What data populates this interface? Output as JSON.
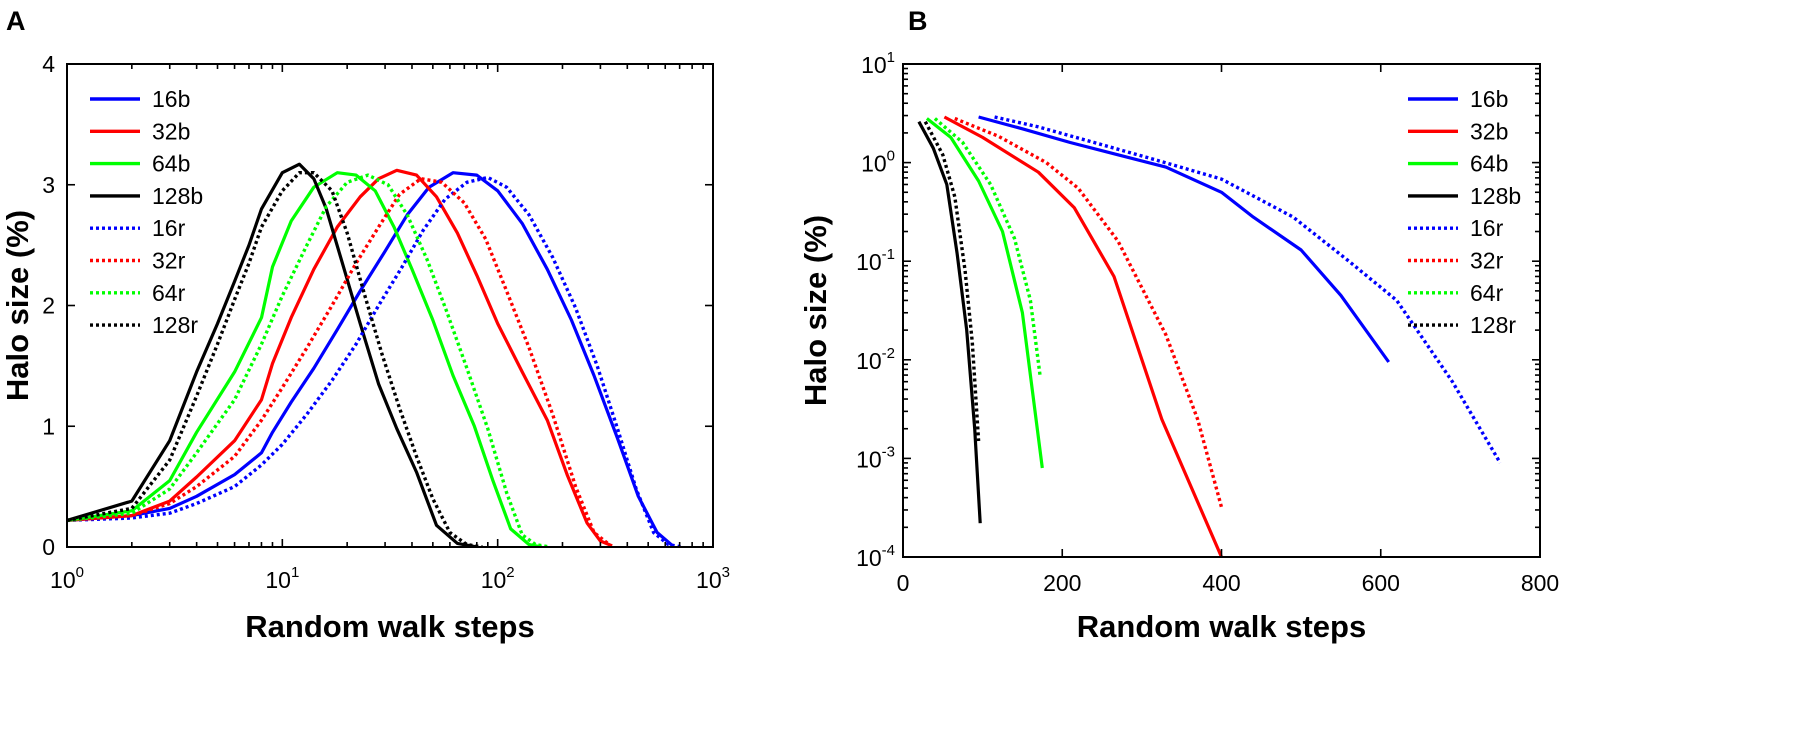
{
  "chart_data": [
    {
      "panel": "A",
      "type": "line",
      "xscale": "log",
      "yscale": "linear",
      "xlabel": "Random walk steps",
      "ylabel": "Halo size (%)",
      "xlim": [
        1,
        1000
      ],
      "ylim": [
        0,
        4
      ],
      "xticks": [
        {
          "value": 1,
          "base": "10",
          "exp": "0"
        },
        {
          "value": 10,
          "base": "10",
          "exp": "1"
        },
        {
          "value": 100,
          "base": "10",
          "exp": "2"
        },
        {
          "value": 1000,
          "base": "10",
          "exp": "3"
        }
      ],
      "yticks": [
        {
          "value": 0,
          "label": "0"
        },
        {
          "value": 1,
          "label": "1"
        },
        {
          "value": 2,
          "label": "2"
        },
        {
          "value": 3,
          "label": "3"
        },
        {
          "value": 4,
          "label": "4"
        }
      ],
      "legend_position": "top-left",
      "series": [
        {
          "name": "16b",
          "color": "#0000ff",
          "dash": false,
          "x": [
            1,
            2,
            3,
            4,
            6,
            8,
            9,
            11,
            14,
            18,
            23,
            30,
            38,
            48,
            62,
            80,
            100,
            130,
            170,
            220,
            280,
            360,
            450,
            550,
            650
          ],
          "y": [
            0.22,
            0.26,
            0.32,
            0.42,
            0.6,
            0.78,
            0.95,
            1.2,
            1.48,
            1.8,
            2.12,
            2.45,
            2.75,
            2.98,
            3.1,
            3.08,
            2.95,
            2.68,
            2.3,
            1.88,
            1.42,
            0.9,
            0.42,
            0.12,
            0.01
          ]
        },
        {
          "name": "32b",
          "color": "#ff0000",
          "dash": false,
          "x": [
            1,
            2,
            3,
            4,
            6,
            8,
            9,
            11,
            14,
            18,
            23,
            28,
            34,
            42,
            52,
            65,
            80,
            100,
            130,
            170,
            210,
            260,
            300,
            340
          ],
          "y": [
            0.22,
            0.26,
            0.38,
            0.58,
            0.88,
            1.22,
            1.52,
            1.9,
            2.3,
            2.65,
            2.9,
            3.05,
            3.12,
            3.08,
            2.9,
            2.6,
            2.25,
            1.85,
            1.45,
            1.05,
            0.6,
            0.2,
            0.05,
            0.01
          ]
        },
        {
          "name": "64b",
          "color": "#00ff00",
          "dash": false,
          "x": [
            1,
            2,
            3,
            4,
            6,
            8,
            9,
            11,
            14,
            18,
            22,
            27,
            33,
            40,
            50,
            62,
            78,
            95,
            115,
            140,
            160
          ],
          "y": [
            0.22,
            0.3,
            0.55,
            0.95,
            1.45,
            1.9,
            2.32,
            2.7,
            2.98,
            3.1,
            3.08,
            2.95,
            2.65,
            2.3,
            1.88,
            1.42,
            1.0,
            0.55,
            0.15,
            0.02,
            0.0
          ]
        },
        {
          "name": "128b",
          "color": "#000000",
          "dash": false,
          "x": [
            1,
            2,
            3,
            4,
            5,
            6,
            7,
            8,
            10,
            12,
            14,
            16,
            19,
            23,
            28,
            34,
            42,
            52,
            65,
            80
          ],
          "y": [
            0.22,
            0.38,
            0.88,
            1.45,
            1.85,
            2.2,
            2.5,
            2.8,
            3.1,
            3.17,
            3.05,
            2.8,
            2.35,
            1.85,
            1.35,
            0.98,
            0.62,
            0.18,
            0.03,
            0.0
          ]
        },
        {
          "name": "16r",
          "color": "#0000ff",
          "dash": true,
          "x": [
            1,
            2,
            3,
            4,
            6,
            8,
            10,
            13,
            17,
            22,
            28,
            36,
            45,
            57,
            72,
            90,
            110,
            140,
            180,
            230,
            290,
            360,
            440,
            530,
            620,
            720
          ],
          "y": [
            0.22,
            0.24,
            0.28,
            0.36,
            0.5,
            0.68,
            0.85,
            1.1,
            1.38,
            1.68,
            2.0,
            2.32,
            2.62,
            2.88,
            3.02,
            3.06,
            2.98,
            2.75,
            2.4,
            1.98,
            1.5,
            0.98,
            0.48,
            0.12,
            0.02,
            0.0
          ]
        },
        {
          "name": "32r",
          "color": "#ff0000",
          "dash": true,
          "x": [
            1,
            2,
            3,
            4,
            6,
            8,
            10,
            13,
            17,
            22,
            28,
            35,
            44,
            55,
            70,
            88,
            110,
            140,
            180,
            230,
            280,
            330
          ],
          "y": [
            0.22,
            0.26,
            0.36,
            0.5,
            0.75,
            1.05,
            1.32,
            1.65,
            2.0,
            2.35,
            2.65,
            2.92,
            3.05,
            3.02,
            2.85,
            2.55,
            2.12,
            1.65,
            1.1,
            0.5,
            0.12,
            0.02
          ]
        },
        {
          "name": "64r",
          "color": "#00ff00",
          "dash": true,
          "x": [
            1,
            2,
            3,
            4,
            6,
            8,
            10,
            13,
            16,
            20,
            25,
            31,
            38,
            47,
            58,
            72,
            90,
            110,
            130,
            150,
            175
          ],
          "y": [
            0.22,
            0.28,
            0.48,
            0.78,
            1.22,
            1.68,
            2.08,
            2.5,
            2.82,
            3.02,
            3.08,
            3.0,
            2.75,
            2.38,
            1.95,
            1.48,
            0.98,
            0.45,
            0.1,
            0.02,
            0.0
          ]
        },
        {
          "name": "128r",
          "color": "#000000",
          "dash": true,
          "x": [
            1,
            2,
            3,
            4,
            5,
            6,
            7,
            8,
            10,
            12,
            14,
            17,
            20,
            24,
            29,
            35,
            42,
            50,
            60,
            72,
            85
          ],
          "y": [
            0.22,
            0.32,
            0.72,
            1.25,
            1.68,
            2.05,
            2.35,
            2.65,
            2.95,
            3.1,
            3.1,
            2.95,
            2.6,
            2.1,
            1.6,
            1.15,
            0.75,
            0.4,
            0.12,
            0.02,
            0.0
          ]
        }
      ]
    },
    {
      "panel": "B",
      "type": "line",
      "xscale": "linear",
      "yscale": "log",
      "xlabel": "Random walk steps",
      "ylabel": "Halo size (%)",
      "xlim": [
        0,
        800
      ],
      "ylim": [
        0.0001,
        10
      ],
      "xticks": [
        {
          "value": 0,
          "label": "0"
        },
        {
          "value": 200,
          "label": "200"
        },
        {
          "value": 400,
          "label": "400"
        },
        {
          "value": 600,
          "label": "600"
        },
        {
          "value": 800,
          "label": "800"
        }
      ],
      "yticks": [
        {
          "value": 0.0001,
          "base": "10",
          "exp": "-4"
        },
        {
          "value": 0.001,
          "base": "10",
          "exp": "-3"
        },
        {
          "value": 0.01,
          "base": "10",
          "exp": "-2"
        },
        {
          "value": 0.1,
          "base": "10",
          "exp": "-1"
        },
        {
          "value": 1,
          "base": "10",
          "exp": "0"
        },
        {
          "value": 10,
          "base": "10",
          "exp": "1"
        }
      ],
      "legend_position": "top-right",
      "series": [
        {
          "name": "16b",
          "color": "#0000ff",
          "dash": false,
          "x": [
            95,
            150,
            210,
            270,
            330,
            400,
            440,
            500,
            550,
            610
          ],
          "y": [
            2.9,
            2.2,
            1.6,
            1.2,
            0.9,
            0.5,
            0.28,
            0.13,
            0.045,
            0.0095
          ]
        },
        {
          "name": "32b",
          "color": "#ff0000",
          "dash": false,
          "x": [
            52,
            100,
            170,
            215,
            265,
            325,
            400
          ],
          "y": [
            2.9,
            1.8,
            0.8,
            0.35,
            0.07,
            0.0025,
            0.0001
          ]
        },
        {
          "name": "64b",
          "color": "#00ff00",
          "dash": false,
          "x": [
            30,
            60,
            95,
            125,
            150,
            175
          ],
          "y": [
            2.8,
            1.8,
            0.65,
            0.2,
            0.03,
            0.0008
          ]
        },
        {
          "name": "128b",
          "color": "#000000",
          "dash": false,
          "x": [
            20,
            38,
            55,
            68,
            80,
            90,
            97
          ],
          "y": [
            2.6,
            1.4,
            0.6,
            0.12,
            0.02,
            0.002,
            0.00022
          ]
        },
        {
          "name": "16r",
          "color": "#0000ff",
          "dash": true,
          "x": [
            115,
            170,
            240,
            320,
            400,
            490,
            560,
            620,
            690,
            750
          ],
          "y": [
            2.9,
            2.3,
            1.6,
            1.05,
            0.68,
            0.28,
            0.1,
            0.04,
            0.006,
            0.0009
          ]
        },
        {
          "name": "32r",
          "color": "#ff0000",
          "dash": true,
          "x": [
            65,
            120,
            180,
            220,
            270,
            330,
            370,
            400
          ],
          "y": [
            2.8,
            1.85,
            1.0,
            0.55,
            0.16,
            0.018,
            0.0025,
            0.00032
          ]
        },
        {
          "name": "64r",
          "color": "#00ff00",
          "dash": true,
          "x": [
            40,
            75,
            110,
            140,
            160,
            172
          ],
          "y": [
            2.8,
            1.6,
            0.6,
            0.17,
            0.04,
            0.007
          ]
        },
        {
          "name": "128r",
          "color": "#000000",
          "dash": true,
          "x": [
            28,
            50,
            65,
            78,
            87,
            95
          ],
          "y": [
            2.6,
            1.2,
            0.45,
            0.08,
            0.015,
            0.0015
          ]
        }
      ]
    }
  ]
}
